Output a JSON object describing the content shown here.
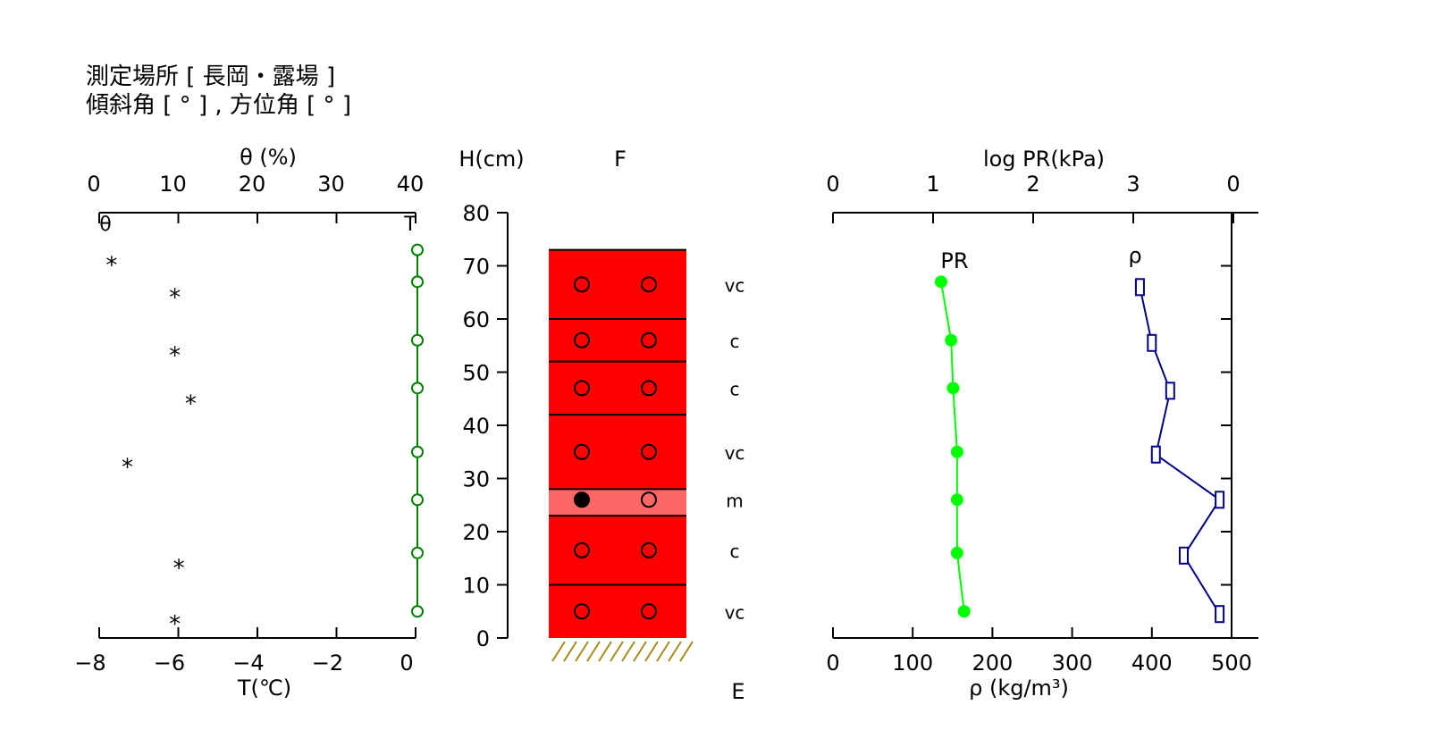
{
  "header": {
    "line1": "測定場所 [ 長岡・露場 ]",
    "line2": "傾斜角 [ ° ] , 方位角 [ ° ]"
  },
  "chart_data": [
    {
      "type": "scatter",
      "panel": "temperature-moisture",
      "top_axis": {
        "label": "θ (%)",
        "ticks": [
          0,
          10,
          20,
          30,
          40
        ],
        "range": [
          0,
          40
        ]
      },
      "bottom_axis": {
        "label": "T(℃)",
        "ticks": [
          -8,
          -6,
          -4,
          -2,
          0
        ],
        "range": [
          -8,
          0
        ]
      },
      "y_range_cm": [
        0,
        80
      ],
      "series": [
        {
          "name": "θ",
          "marker": "asterisk",
          "color": "#000000",
          "points": [
            {
              "x": 1,
              "h": 71
            },
            {
              "x": 9,
              "h": 65
            },
            {
              "x": 9,
              "h": 54
            },
            {
              "x": 11,
              "h": 45
            },
            {
              "x": 3,
              "h": 33
            },
            {
              "x": 9.5,
              "h": 14
            },
            {
              "x": 9,
              "h": 3.5
            }
          ]
        },
        {
          "name": "T",
          "marker": "open-circle",
          "color": "#008000",
          "line": true,
          "points": [
            {
              "x": 0,
              "h": 73
            },
            {
              "x": 0,
              "h": 67
            },
            {
              "x": 0,
              "h": 56
            },
            {
              "x": 0,
              "h": 47
            },
            {
              "x": 0,
              "h": 35
            },
            {
              "x": 0,
              "h": 26
            },
            {
              "x": 0,
              "h": 16
            },
            {
              "x": 0,
              "h": 5
            }
          ]
        }
      ]
    },
    {
      "type": "table",
      "panel": "snow-profile",
      "y_axis": {
        "label": "H(cm)",
        "ticks": [
          0,
          10,
          20,
          30,
          40,
          50,
          60,
          70,
          80
        ],
        "range": [
          0,
          80
        ]
      },
      "top_label": "F",
      "bottom_label": "E",
      "snow_top": 73,
      "layers": [
        {
          "bottom": 60,
          "top": 73,
          "grain": "vc",
          "color": "#ff0000",
          "marker_h": 66.5,
          "left_filled": false
        },
        {
          "bottom": 52,
          "top": 60,
          "grain": "c",
          "color": "#ff0000",
          "marker_h": 56,
          "left_filled": false
        },
        {
          "bottom": 42,
          "top": 52,
          "grain": "c",
          "color": "#ff0000",
          "marker_h": 47,
          "left_filled": false
        },
        {
          "bottom": 28,
          "top": 42,
          "grain": "vc",
          "color": "#ff0000",
          "marker_h": 35,
          "left_filled": false
        },
        {
          "bottom": 23,
          "top": 28,
          "grain": "m",
          "color": "#ff6666",
          "marker_h": 26,
          "left_filled": true
        },
        {
          "bottom": 10,
          "top": 23,
          "grain": "c",
          "color": "#ff0000",
          "marker_h": 16.5,
          "left_filled": false
        },
        {
          "bottom": 0,
          "top": 10,
          "grain": "vc",
          "color": "#ff0000",
          "marker_h": 5,
          "left_filled": false
        }
      ]
    },
    {
      "type": "line",
      "panel": "hardness-density",
      "top_axis": {
        "label": "log PR(kPa)",
        "ticks": [
          "0",
          "1",
          "2",
          "3",
          "0"
        ],
        "range": [
          0,
          4
        ]
      },
      "bottom_axis": {
        "label": "ρ (kg/m³)",
        "ticks": [
          0,
          100,
          200,
          300,
          400,
          500
        ],
        "range": [
          0,
          500
        ]
      },
      "y_range_cm": [
        0,
        80
      ],
      "series": [
        {
          "name": "PR",
          "color": "#00ff00",
          "marker": "filled-circle",
          "points": [
            {
              "x": 1.08,
              "h": 67
            },
            {
              "x": 1.18,
              "h": 56
            },
            {
              "x": 1.2,
              "h": 47
            },
            {
              "x": 1.24,
              "h": 35
            },
            {
              "x": 1.24,
              "h": 26
            },
            {
              "x": 1.24,
              "h": 16
            },
            {
              "x": 1.31,
              "h": 5
            }
          ]
        },
        {
          "name": "ρ",
          "color": "#000080",
          "marker": "open-square",
          "points": [
            {
              "x": 385,
              "h": 66
            },
            {
              "x": 400,
              "h": 55.5
            },
            {
              "x": 423,
              "h": 46.5
            },
            {
              "x": 405,
              "h": 34.5
            },
            {
              "x": 485,
              "h": 26
            },
            {
              "x": 440,
              "h": 15.5
            },
            {
              "x": 485,
              "h": 4.5
            }
          ]
        }
      ]
    }
  ]
}
